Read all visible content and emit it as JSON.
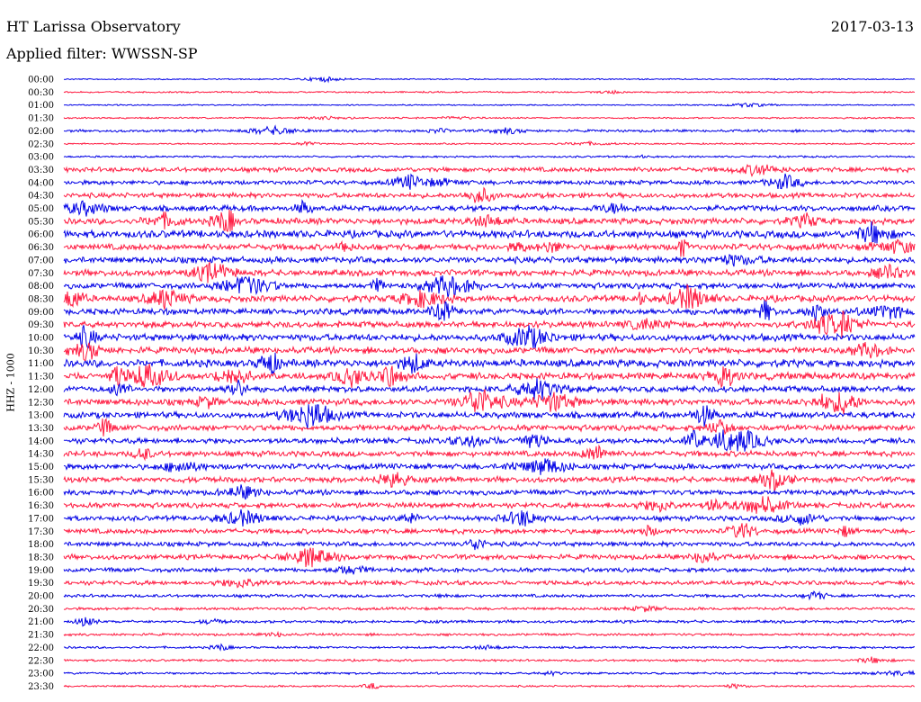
{
  "header": {
    "station": "HT Larissa Observatory",
    "date": "2017-03-13",
    "filter_label": "Applied filter: WWSSN-SP"
  },
  "chart_data": {
    "type": "line",
    "title": "HT Larissa Observatory",
    "ylabel": "HHZ - 1000",
    "row_labels": [
      "00:00",
      "00:30",
      "01:00",
      "01:30",
      "02:00",
      "02:30",
      "03:00",
      "03:30",
      "04:00",
      "04:30",
      "05:00",
      "05:30",
      "06:00",
      "06:30",
      "07:00",
      "07:30",
      "08:00",
      "08:30",
      "09:00",
      "09:30",
      "10:00",
      "10:30",
      "11:00",
      "11:30",
      "12:00",
      "12:30",
      "13:00",
      "13:30",
      "14:00",
      "14:30",
      "15:00",
      "15:30",
      "16:00",
      "16:30",
      "17:00",
      "17:30",
      "18:00",
      "18:30",
      "19:00",
      "19:30",
      "20:00",
      "20:30",
      "21:00",
      "21:30",
      "22:00",
      "22:30",
      "23:00",
      "23:30"
    ],
    "colors": [
      "#0000e6",
      "#ff1a40"
    ],
    "noise_level": [
      0.4,
      0.5,
      0.4,
      0.5,
      0.8,
      0.5,
      0.6,
      1.5,
      1.4,
      1.6,
      1.8,
      2.0,
      2.4,
      2.0,
      2.0,
      2.0,
      1.9,
      2.1,
      2.0,
      2.0,
      2.2,
      2.1,
      2.4,
      2.2,
      2.0,
      2.1,
      2.0,
      1.9,
      1.8,
      1.8,
      1.8,
      1.8,
      1.7,
      1.7,
      1.6,
      1.6,
      1.5,
      1.6,
      1.4,
      1.4,
      1.0,
      0.9,
      0.9,
      0.8,
      0.7,
      0.7,
      0.7,
      0.6
    ],
    "grid": false
  }
}
